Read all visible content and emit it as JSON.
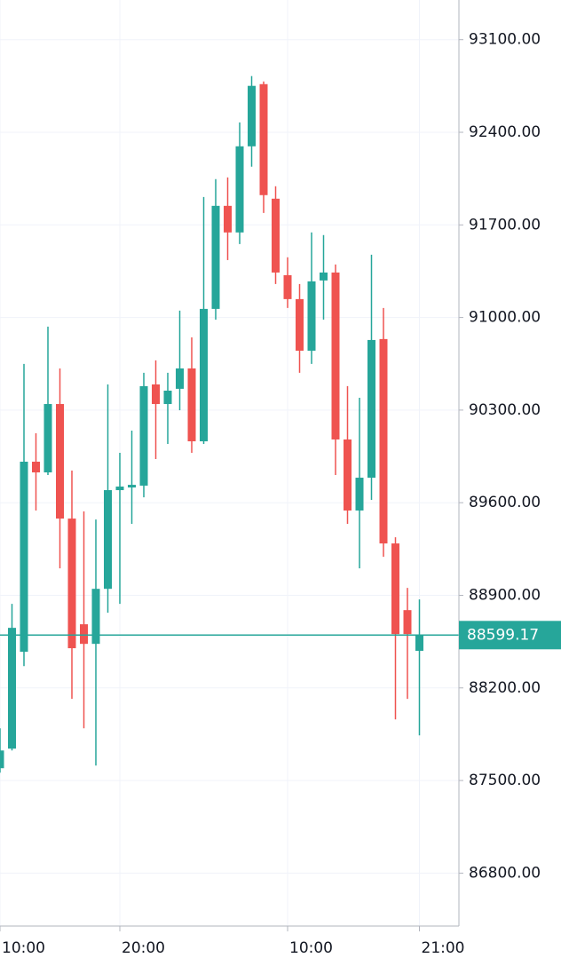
{
  "chart_data": {
    "type": "candlestick",
    "categories": [
      "10:00",
      null,
      null,
      null,
      null,
      null,
      null,
      null,
      null,
      null,
      "20:00",
      null,
      null,
      null,
      null,
      null,
      null,
      null,
      null,
      null,
      null,
      null,
      null,
      null,
      "10:00",
      null,
      null,
      null,
      null,
      null,
      null,
      null,
      null,
      null,
      null,
      "21:00"
    ],
    "open": [
      87593,
      87741,
      88473,
      89910,
      89829,
      90346,
      89480,
      88681,
      88533,
      88949,
      89695,
      89715,
      89729,
      90494,
      90346,
      90461,
      90615,
      90064,
      91065,
      91844,
      91643,
      92294,
      92764,
      91898,
      91320,
      91139,
      90749,
      91280,
      91340,
      90078,
      89541,
      89789,
      90837,
      89292,
      88788,
      88480
    ],
    "high": [
      87895,
      88835,
      90649,
      90125,
      90931,
      90615,
      89843,
      89534,
      89473,
      90494,
      89977,
      90145,
      90582,
      90676,
      90582,
      91052,
      90850,
      91911,
      92046,
      92059,
      92475,
      92825,
      92784,
      91992,
      91455,
      91253,
      91643,
      91623,
      91401,
      90481,
      90393,
      91475,
      91072,
      89339,
      88956,
      88869
    ],
    "low": [
      87559,
      87727,
      88365,
      89541,
      89809,
      89104,
      88117,
      87895,
      87613,
      88768,
      88835,
      89440,
      89641,
      89930,
      90044,
      90299,
      89977,
      90044,
      90984,
      91434,
      91555,
      92140,
      91790,
      91253,
      91072,
      90582,
      90649,
      90984,
      89809,
      89440,
      89104,
      89621,
      89191,
      87962,
      88117,
      87841
    ],
    "close": [
      87727,
      88654,
      89910,
      89829,
      90346,
      89480,
      88500,
      88533,
      88949,
      89695,
      89722,
      89735,
      90481,
      90346,
      90447,
      90615,
      90064,
      91065,
      91844,
      91643,
      92294,
      92751,
      91925,
      91340,
      91139,
      90749,
      91273,
      91340,
      90078,
      89541,
      89789,
      90830,
      89292,
      88607,
      88607,
      88599.17
    ],
    "up_color": "#26a69a",
    "down_color": "#ef5350",
    "ylim": [
      86420,
      93400
    ],
    "yticks": [
      {
        "value": 86800,
        "label": "86800.00"
      },
      {
        "value": 87500,
        "label": "87500.00"
      },
      {
        "value": 88200,
        "label": "88200.00"
      },
      {
        "value": 88900,
        "label": "88900.00"
      },
      {
        "value": 89600,
        "label": "89600.00"
      },
      {
        "value": 90300,
        "label": "90300.00"
      },
      {
        "value": 91000,
        "label": "91000.00"
      },
      {
        "value": 91700,
        "label": "91700.00"
      },
      {
        "value": 92400,
        "label": "92400.00"
      },
      {
        "value": 93100,
        "label": "93100.00"
      }
    ],
    "grid": true,
    "last_price": 88599.17,
    "last_price_color": "#26a69a"
  }
}
